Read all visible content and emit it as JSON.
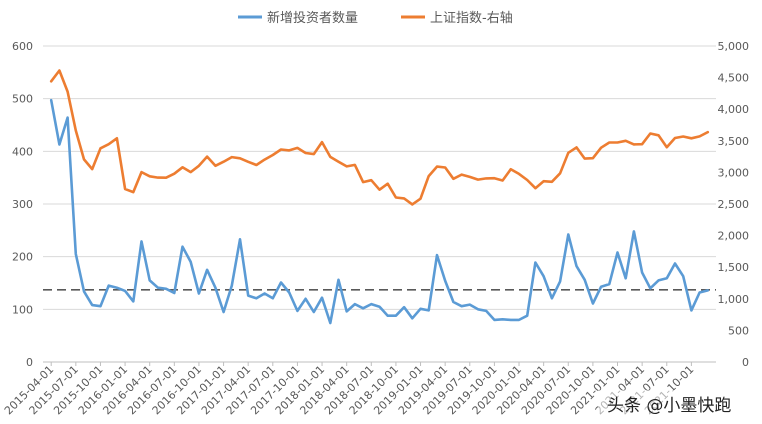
{
  "chart_data": {
    "type": "line",
    "legend": {
      "position": "top",
      "items": [
        {
          "label": "新增投资者数量",
          "color": "#5B9BD5"
        },
        {
          "label": "上证指数-右轴",
          "color": "#ED7D31"
        }
      ]
    },
    "y_left": {
      "min": 0,
      "max": 600,
      "ticks": [
        "0",
        "100",
        "200",
        "300",
        "400",
        "500",
        "600"
      ]
    },
    "y_right": {
      "min": 0,
      "max": 5000,
      "ticks": [
        "0",
        "500",
        "1,000",
        "1,500",
        "2,000",
        "2,500",
        "3,000",
        "3,500",
        "4,000",
        "4,500",
        "5,000"
      ]
    },
    "x_tick_labels": [
      "2015-04-01",
      "2015-07-01",
      "2015-10-01",
      "2016-01-01",
      "2016-04-01",
      "2016-07-01",
      "2016-10-01",
      "2017-01-01",
      "2017-04-01",
      "2017-07-01",
      "2017-10-01",
      "2018-01-01",
      "2018-04-01",
      "2018-07-01",
      "2018-10-01",
      "2019-01-01",
      "2019-04-01",
      "2019-07-01",
      "2019-10-01",
      "2020-01-01",
      "2020-04-01",
      "2020-07-01",
      "2020-10-01",
      "2021-01-01",
      "2021-04-01",
      "2021-07-01",
      "2021-10-01"
    ],
    "grid": {
      "horizontal": true
    },
    "reference_line": {
      "y": 137,
      "style": "dashed",
      "color": "#595959"
    },
    "series": [
      {
        "name": "新增投资者数量",
        "axis": "left",
        "color": "#5B9BD5",
        "values": [
          497,
          413,
          464,
          205,
          134,
          108,
          106,
          145,
          141,
          135,
          115,
          229,
          155,
          141,
          139,
          131,
          219,
          190,
          130,
          175,
          141,
          95,
          145,
          233,
          126,
          121,
          130,
          121,
          151,
          132,
          97,
          120,
          95,
          122,
          74,
          156,
          96,
          110,
          102,
          110,
          105,
          88,
          88,
          104,
          83,
          101,
          98,
          203,
          154,
          114,
          106,
          109,
          100,
          97,
          80,
          81,
          80,
          80,
          88,
          189,
          163,
          121,
          153,
          242,
          182,
          156,
          111,
          143,
          148,
          208,
          159,
          248,
          170,
          140,
          155,
          159,
          187,
          163,
          98,
          132,
          136
        ]
      },
      {
        "name": "上证指数-右轴",
        "axis": "right",
        "color": "#ED7D31",
        "values": [
          4441,
          4612,
          4278,
          3663,
          3205,
          3053,
          3382,
          3446,
          3539,
          2738,
          2688,
          3004,
          2939,
          2917,
          2916,
          2979,
          3080,
          3005,
          3104,
          3250,
          3105,
          3169,
          3242,
          3223,
          3167,
          3117,
          3203,
          3275,
          3363,
          3348,
          3387,
          3307,
          3289,
          3480,
          3245,
          3169,
          3095,
          3119,
          2847,
          2876,
          2726,
          2821,
          2603,
          2588,
          2494,
          2584,
          2941,
          3091,
          3078,
          2899,
          2965,
          2929,
          2886,
          2905,
          2908,
          2872,
          3050,
          2977,
          2880,
          2750,
          2860,
          2852,
          2985,
          3310,
          3395,
          3218,
          3225,
          3391,
          3473,
          3473,
          3500,
          3443,
          3446,
          3616,
          3587,
          3398,
          3545,
          3568,
          3540,
          3570,
          3637
        ]
      }
    ]
  },
  "watermark": {
    "text": "头条 @小墨快跑"
  }
}
